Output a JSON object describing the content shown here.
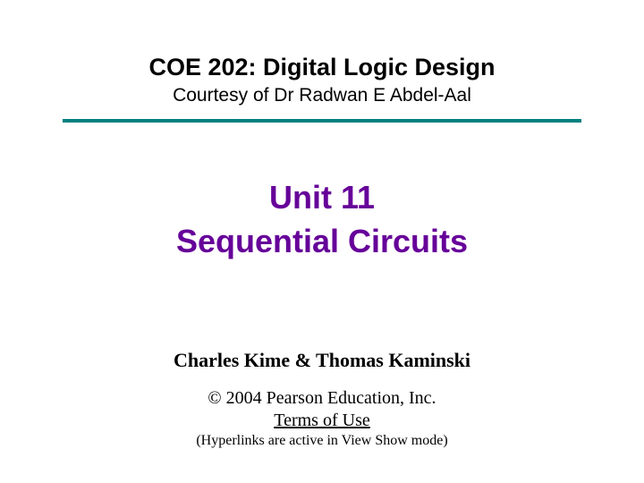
{
  "header": {
    "course_title": "COE 202: Digital Logic Design",
    "courtesy": "Courtesy of Dr Radwan E Abdel-Aal",
    "rule_color": "#008080"
  },
  "unit": {
    "line1": "Unit 11",
    "line2": "Sequential Circuits",
    "color": "#660099"
  },
  "footer": {
    "authors": "Charles Kime & Thomas Kaminski",
    "copyright": "© 2004 Pearson Education, Inc.",
    "terms": "Terms of Use",
    "note": "(Hyperlinks are active in View Show mode)"
  },
  "colors": {
    "background": "#ffffff",
    "text": "#000000"
  }
}
